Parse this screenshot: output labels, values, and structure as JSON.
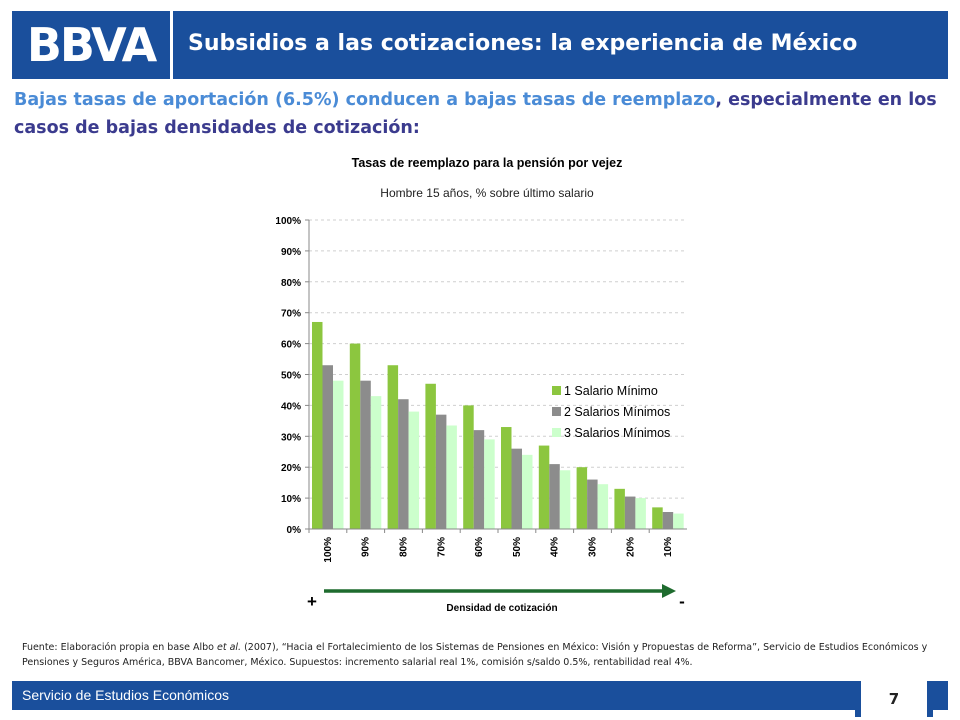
{
  "header": {
    "logo": "BBVA",
    "title": "Subsidios a las cotizaciones: la experiencia de México"
  },
  "lead": {
    "part1": "Bajas tasas de aportación (6.5%) conducen a bajas tasas de reemplazo",
    "part2": ", especialmente en los casos de bajas densidades de cotización:"
  },
  "colors": {
    "brand": "#1a4f9c",
    "series1": "#8cc63f",
    "series2": "#8c8c8c",
    "series3": "#ccffcc",
    "arrow": "#1e6b2e"
  },
  "chart_data": {
    "type": "bar",
    "title": "Tasas de reemplazo para la pensión por vejez",
    "subtitle": "Hombre 15 años, % sobre último salario",
    "categories": [
      "100%",
      "90%",
      "80%",
      "70%",
      "60%",
      "50%",
      "40%",
      "30%",
      "20%",
      "10%"
    ],
    "series": [
      {
        "name": "1 Salario Mínimo",
        "values": [
          67,
          60,
          53,
          47,
          40,
          33,
          27,
          20,
          13,
          7
        ]
      },
      {
        "name": "2 Salarios Mínimos",
        "values": [
          53,
          48,
          42,
          37,
          32,
          26,
          21,
          16,
          10.5,
          5.5
        ]
      },
      {
        "name": "3 Salarios Mínimos",
        "values": [
          48,
          43,
          38,
          33.5,
          29,
          24,
          19,
          14.5,
          10,
          5
        ]
      }
    ],
    "yticks": [
      "0%",
      "10%",
      "20%",
      "30%",
      "40%",
      "50%",
      "60%",
      "70%",
      "80%",
      "90%",
      "100%"
    ],
    "ylim": [
      0,
      100
    ],
    "grid": true,
    "legend_position": "right",
    "xlabel": "Densidad de cotización",
    "arrow_left_label": "+",
    "arrow_right_label": "-"
  },
  "footnote": {
    "prefix": "Fuente: Elaboración propia en base Albo ",
    "etal": "et al.",
    "rest": " (2007), “Hacia el Fortalecimiento de los Sistemas de Pensiones en México: Visión y Propuestas de Reforma”, Servicio de Estudios Económicos y Pensiones y Seguros América, BBVA Bancomer, México. Supuestos: incremento salarial real 1%, comisión s/saldo 0.5%, rentabilidad real 4%."
  },
  "footer": {
    "text": "Servicio de Estudios Económicos",
    "page": "7"
  }
}
